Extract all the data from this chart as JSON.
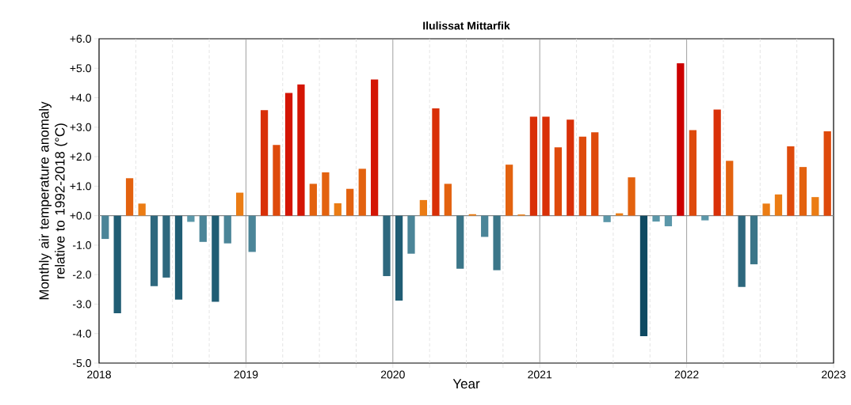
{
  "chart_data": {
    "type": "bar",
    "title": "Ilulissat Mittarfik",
    "xlabel": "Year",
    "ylabel": "Monthly air temperature anomaly relative to 1992-2018 (°C)",
    "x": [
      2018.042,
      2018.125,
      2018.208,
      2018.292,
      2018.375,
      2018.458,
      2018.542,
      2018.625,
      2018.708,
      2018.792,
      2018.875,
      2018.958,
      2019.042,
      2019.125,
      2019.208,
      2019.292,
      2019.375,
      2019.458,
      2019.542,
      2019.625,
      2019.708,
      2019.792,
      2019.875,
      2019.958,
      2020.042,
      2020.125,
      2020.208,
      2020.292,
      2020.375,
      2020.458,
      2020.542,
      2020.625,
      2020.708,
      2020.792,
      2020.875,
      2020.958,
      2021.042,
      2021.125,
      2021.208,
      2021.292,
      2021.375,
      2021.458,
      2021.542,
      2021.625,
      2021.708,
      2021.792,
      2021.875,
      2021.958,
      2022.042,
      2022.125,
      2022.208,
      2022.292,
      2022.375,
      2022.458,
      2022.542,
      2022.625,
      2022.708,
      2022.792,
      2022.875,
      2022.958
    ],
    "values": [
      -0.79,
      -3.31,
      1.27,
      0.41,
      -2.39,
      -2.1,
      -2.85,
      -0.21,
      -0.89,
      -2.92,
      -0.94,
      0.78,
      -1.23,
      3.58,
      2.4,
      4.16,
      4.45,
      1.08,
      1.47,
      0.42,
      0.91,
      1.59,
      4.62,
      -2.05,
      -2.88,
      -1.29,
      0.53,
      3.64,
      1.08,
      -1.8,
      0.05,
      -0.72,
      -1.85,
      1.73,
      0.04,
      3.36,
      3.36,
      2.32,
      3.26,
      2.68,
      2.83,
      -0.22,
      0.08,
      1.3,
      -4.09,
      -0.2,
      -0.36,
      5.17,
      2.9,
      -0.16,
      3.6,
      1.86,
      -2.42,
      -1.65,
      0.41,
      0.72,
      2.35,
      1.65,
      0.63,
      2.86
    ],
    "colors": [
      "#4b8598",
      "#205d74",
      "#e3620f",
      "#eb7c14",
      "#2e687e",
      "#2e687e",
      "#205d74",
      "#5b97a9",
      "#4b8598",
      "#205d74",
      "#4b8598",
      "#eb7c14",
      "#4b8598",
      "#d93008",
      "#de4a0c",
      "#d41504",
      "#d41504",
      "#e3620f",
      "#e3620f",
      "#eb7c14",
      "#e3620f",
      "#e3620f",
      "#d41504",
      "#2e687e",
      "#205d74",
      "#4b8598",
      "#eb7c14",
      "#d93008",
      "#e3620f",
      "#3b7689",
      "#eb7c14",
      "#4b8598",
      "#3b7689",
      "#e3620f",
      "#eb7c14",
      "#d93008",
      "#d93008",
      "#de4a0c",
      "#d93008",
      "#de4a0c",
      "#de4a0c",
      "#5b97a9",
      "#eb7c14",
      "#e3620f",
      "#0f4a62",
      "#5b97a9",
      "#5b97a9",
      "#cc0000",
      "#de4a0c",
      "#5b97a9",
      "#d93008",
      "#e3620f",
      "#2e687e",
      "#3b7689",
      "#eb7c14",
      "#eb7c14",
      "#de4a0c",
      "#e3620f",
      "#eb7c14",
      "#de4a0c"
    ],
    "xlim": [
      2018,
      2023
    ],
    "xticks": [
      2018,
      {
        "value": 2018.25,
        "label": null
      },
      {
        "value": 2018.5,
        "label": null
      },
      {
        "value": 2018.75,
        "label": null
      },
      2019,
      {
        "value": 2019.25,
        "label": null
      },
      {
        "value": 2019.5,
        "label": null
      },
      {
        "value": 2019.75,
        "label": null
      },
      2020,
      {
        "value": 2020.25,
        "label": null
      },
      {
        "value": 2020.5,
        "label": null
      },
      {
        "value": 2020.75,
        "label": null
      },
      2021,
      {
        "value": 2021.25,
        "label": null
      },
      {
        "value": 2021.5,
        "label": null
      },
      {
        "value": 2021.75,
        "label": null
      },
      2022,
      {
        "value": 2022.25,
        "label": null
      },
      {
        "value": 2022.5,
        "label": null
      },
      {
        "value": 2022.75,
        "label": null
      },
      2023
    ],
    "ylim": [
      -5,
      6
    ],
    "yticks": [
      {
        "value": -5,
        "label": "-5.0"
      },
      {
        "value": -4,
        "label": "-4.0"
      },
      {
        "value": -3,
        "label": "-3.0"
      },
      {
        "value": -2,
        "label": "-2.0"
      },
      {
        "value": -1,
        "label": "-1.0"
      },
      {
        "value": 0,
        "label": "+0.0"
      },
      {
        "value": 1,
        "label": "+1.0"
      },
      {
        "value": 2,
        "label": "+2.0"
      },
      {
        "value": 3,
        "label": "+3.0"
      },
      {
        "value": 4,
        "label": "+4.0"
      },
      {
        "value": 5,
        "label": "+5.0"
      },
      {
        "value": 6,
        "label": "+6.0"
      }
    ],
    "ref_lines": [
      {
        "axis": "y",
        "value": 0,
        "color": "#888888",
        "line_style": "solid"
      },
      {
        "axis": "x",
        "value": 2019,
        "color": "#888888",
        "line_style": "solid"
      },
      {
        "axis": "x",
        "value": 2020,
        "color": "#888888",
        "line_style": "solid"
      },
      {
        "axis": "x",
        "value": 2021,
        "color": "#888888",
        "line_style": "solid"
      },
      {
        "axis": "x",
        "value": 2022,
        "color": "#888888",
        "line_style": "solid"
      },
      {
        "axis": "x",
        "value": 2018.25,
        "color": "#dddddd",
        "line_style": "dashed"
      },
      {
        "axis": "x",
        "value": 2018.5,
        "color": "#dddddd",
        "line_style": "dashed"
      },
      {
        "axis": "x",
        "value": 2018.75,
        "color": "#dddddd",
        "line_style": "dashed"
      },
      {
        "axis": "x",
        "value": 2019.25,
        "color": "#dddddd",
        "line_style": "dashed"
      },
      {
        "axis": "x",
        "value": 2019.5,
        "color": "#dddddd",
        "line_style": "dashed"
      },
      {
        "axis": "x",
        "value": 2019.75,
        "color": "#dddddd",
        "line_style": "dashed"
      },
      {
        "axis": "x",
        "value": 2020.25,
        "color": "#dddddd",
        "line_style": "dashed"
      },
      {
        "axis": "x",
        "value": 2020.5,
        "color": "#dddddd",
        "line_style": "dashed"
      },
      {
        "axis": "x",
        "value": 2020.75,
        "color": "#dddddd",
        "line_style": "dashed"
      },
      {
        "axis": "x",
        "value": 2021.25,
        "color": "#dddddd",
        "line_style": "dashed"
      },
      {
        "axis": "x",
        "value": 2021.5,
        "color": "#dddddd",
        "line_style": "dashed"
      },
      {
        "axis": "x",
        "value": 2021.75,
        "color": "#dddddd",
        "line_style": "dashed"
      },
      {
        "axis": "x",
        "value": 2022.25,
        "color": "#dddddd",
        "line_style": "dashed"
      },
      {
        "axis": "x",
        "value": 2022.5,
        "color": "#dddddd",
        "line_style": "dashed"
      },
      {
        "axis": "x",
        "value": 2022.75,
        "color": "#dddddd",
        "line_style": "dashed"
      }
    ]
  }
}
